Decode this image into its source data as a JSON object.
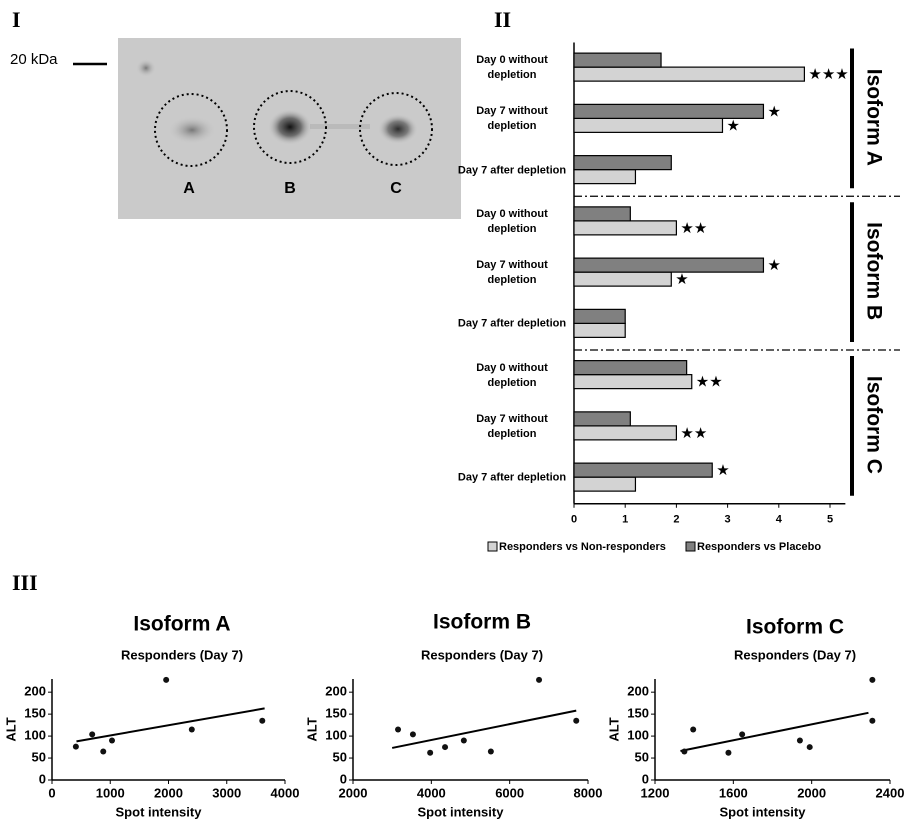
{
  "panel_labels": [
    "I",
    "II",
    "III"
  ],
  "gel": {
    "marker_label": "20 kDa",
    "spot_labels": [
      "A",
      "B",
      "C"
    ]
  },
  "chart_data": [
    {
      "type": "bar",
      "orientation": "horizontal",
      "categories": [
        "Day 0 without depletion",
        "Day 7 without depletion",
        "Day 7 after depletion",
        "Day 0 without depletion",
        "Day 7 without depletion",
        "Day 7 after depletion",
        "Day 0 without depletion",
        "Day 7 without depletion",
        "Day 7 after depletion"
      ],
      "groups": [
        "Isoform A",
        "Isoform B",
        "Isoform C"
      ],
      "series": [
        {
          "name": "Responders vs Non-responders",
          "color": "#d3d3d3",
          "values": [
            4.5,
            2.9,
            1.2,
            2.0,
            1.9,
            1.0,
            2.3,
            2.0,
            1.2
          ],
          "significance": [
            "★★★",
            "★",
            null,
            "★★",
            "★",
            null,
            "★★",
            "★★",
            null
          ]
        },
        {
          "name": "Responders vs Placebo",
          "color": "#808080",
          "values": [
            1.7,
            3.7,
            1.9,
            1.1,
            3.7,
            1.0,
            2.2,
            1.1,
            2.7
          ],
          "significance": [
            null,
            "★",
            null,
            null,
            "★",
            null,
            null,
            null,
            "★"
          ]
        }
      ],
      "xlim": [
        0,
        5.3
      ],
      "xticks": [
        0,
        1,
        2,
        3,
        4,
        5
      ],
      "legend": "bottom"
    },
    {
      "type": "scatter",
      "title": "Isoform A",
      "subtitle": "Responders (Day 7)",
      "xlabel": "Spot intensity",
      "ylabel": "ALT",
      "color": "#111111",
      "x": [
        410,
        690,
        880,
        1030,
        1960,
        2400,
        3610
      ],
      "y": [
        76,
        104,
        65,
        90,
        228,
        115,
        135
      ],
      "trendline": {
        "x": [
          420,
          3650
        ],
        "y": [
          88,
          163
        ]
      },
      "xlim": [
        0,
        4000
      ],
      "xticks": [
        0,
        1000,
        2000,
        3000,
        4000
      ],
      "ylim": [
        0,
        230
      ],
      "yticks": [
        0,
        50,
        100,
        150,
        200
      ]
    },
    {
      "type": "scatter",
      "title": "Isoform B",
      "subtitle": "Responders (Day 7)",
      "xlabel": "Spot intensity",
      "ylabel": "ALT",
      "color": "#111111",
      "x": [
        3150,
        3530,
        3970,
        4350,
        4830,
        5520,
        6750,
        7700
      ],
      "y": [
        115,
        104,
        62,
        75,
        90,
        65,
        228,
        135
      ],
      "trendline": {
        "x": [
          3000,
          7700
        ],
        "y": [
          73,
          158
        ]
      },
      "xlim": [
        2000,
        8000
      ],
      "xticks": [
        2000,
        4000,
        6000,
        8000
      ],
      "ylim": [
        0,
        230
      ],
      "yticks": [
        0,
        50,
        100,
        150,
        200
      ]
    },
    {
      "type": "scatter",
      "title": "Isoform C",
      "subtitle": "Responders (Day 7)",
      "xlabel": "Spot intensity",
      "ylabel": "ALT",
      "color": "#111111",
      "x": [
        1350,
        1395,
        1575,
        1645,
        1940,
        1990,
        2310,
        2310
      ],
      "y": [
        65,
        115,
        62,
        104,
        90,
        75,
        228,
        135
      ],
      "trendline": {
        "x": [
          1330,
          2290
        ],
        "y": [
          66,
          153
        ]
      },
      "xlim": [
        1200,
        2400
      ],
      "xticks": [
        1200,
        1600,
        2000,
        2400
      ],
      "ylim": [
        0,
        230
      ],
      "yticks": [
        0,
        50,
        100,
        150,
        200
      ]
    }
  ]
}
